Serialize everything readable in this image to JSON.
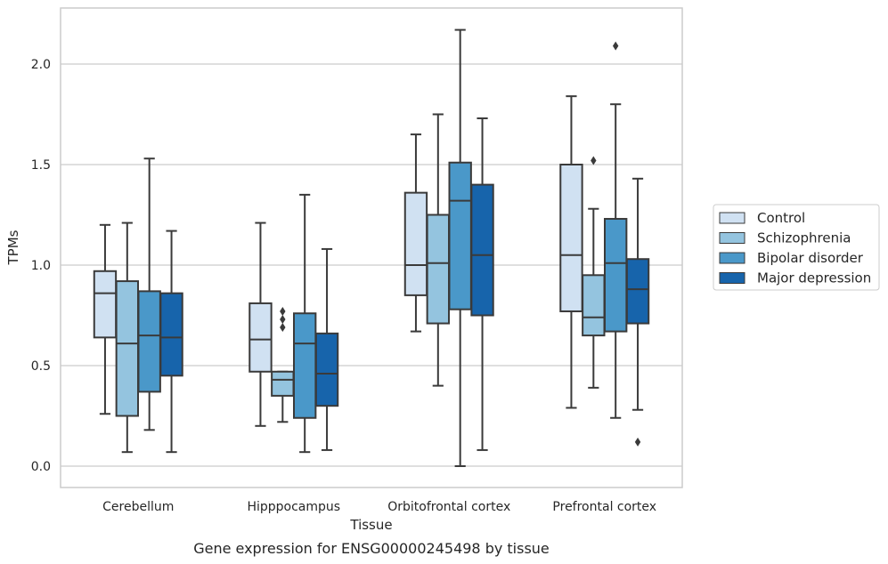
{
  "chart_data": {
    "type": "box",
    "title": "",
    "caption": "Gene expression for ENSG00000245498 by tissue",
    "xlabel": "Tissue",
    "ylabel": "TPMs",
    "ylim": [
      -0.1,
      2.28
    ],
    "yticks": [
      0.0,
      0.5,
      1.0,
      1.5,
      2.0
    ],
    "ytick_labels": [
      "0.0",
      "0.5",
      "1.0",
      "1.5",
      "2.0"
    ],
    "grid": "horizontal",
    "legend_position": "right",
    "categories": [
      "Cerebellum",
      "Hipppocampus",
      "Orbitofrontal cortex",
      "Prefrontal cortex"
    ],
    "series": [
      {
        "name": "Control",
        "color": "#d0e1f2",
        "boxes": [
          {
            "whislo": 0.26,
            "q1": 0.64,
            "med": 0.86,
            "q3": 0.97,
            "whishi": 1.2,
            "fliers": []
          },
          {
            "whislo": 0.2,
            "q1": 0.47,
            "med": 0.63,
            "q3": 0.81,
            "whishi": 1.21,
            "fliers": []
          },
          {
            "whislo": 0.67,
            "q1": 0.85,
            "med": 1.0,
            "q3": 1.36,
            "whishi": 1.65,
            "fliers": []
          },
          {
            "whislo": 0.29,
            "q1": 0.77,
            "med": 1.05,
            "q3": 1.5,
            "whishi": 1.84,
            "fliers": []
          }
        ]
      },
      {
        "name": "Schizophrenia",
        "color": "#94c4df",
        "boxes": [
          {
            "whislo": 0.07,
            "q1": 0.25,
            "med": 0.61,
            "q3": 0.92,
            "whishi": 1.21,
            "fliers": []
          },
          {
            "whislo": 0.22,
            "q1": 0.35,
            "med": 0.43,
            "q3": 0.47,
            "whishi": 0.47,
            "fliers": [
              0.69,
              0.73,
              0.77
            ]
          },
          {
            "whislo": 0.4,
            "q1": 0.71,
            "med": 1.01,
            "q3": 1.25,
            "whishi": 1.75,
            "fliers": []
          },
          {
            "whislo": 0.39,
            "q1": 0.65,
            "med": 0.74,
            "q3": 0.95,
            "whishi": 1.28,
            "fliers": [
              1.52
            ]
          }
        ]
      },
      {
        "name": "Bipolar disorder",
        "color": "#4a98c9",
        "boxes": [
          {
            "whislo": 0.18,
            "q1": 0.37,
            "med": 0.65,
            "q3": 0.87,
            "whishi": 1.53,
            "fliers": []
          },
          {
            "whislo": 0.07,
            "q1": 0.24,
            "med": 0.61,
            "q3": 0.76,
            "whishi": 1.35,
            "fliers": []
          },
          {
            "whislo": 0.0,
            "q1": 0.78,
            "med": 1.32,
            "q3": 1.51,
            "whishi": 2.17,
            "fliers": []
          },
          {
            "whislo": 0.24,
            "q1": 0.67,
            "med": 1.01,
            "q3": 1.23,
            "whishi": 1.8,
            "fliers": [
              2.09
            ]
          }
        ]
      },
      {
        "name": "Major depression",
        "color": "#1764ab",
        "boxes": [
          {
            "whislo": 0.07,
            "q1": 0.45,
            "med": 0.64,
            "q3": 0.86,
            "whishi": 1.17,
            "fliers": []
          },
          {
            "whislo": 0.08,
            "q1": 0.3,
            "med": 0.46,
            "q3": 0.66,
            "whishi": 1.08,
            "fliers": []
          },
          {
            "whislo": 0.08,
            "q1": 0.75,
            "med": 1.05,
            "q3": 1.4,
            "whishi": 1.73,
            "fliers": []
          },
          {
            "whislo": 0.28,
            "q1": 0.71,
            "med": 0.88,
            "q3": 1.03,
            "whishi": 1.43,
            "fliers": [
              0.12
            ]
          }
        ]
      }
    ]
  }
}
